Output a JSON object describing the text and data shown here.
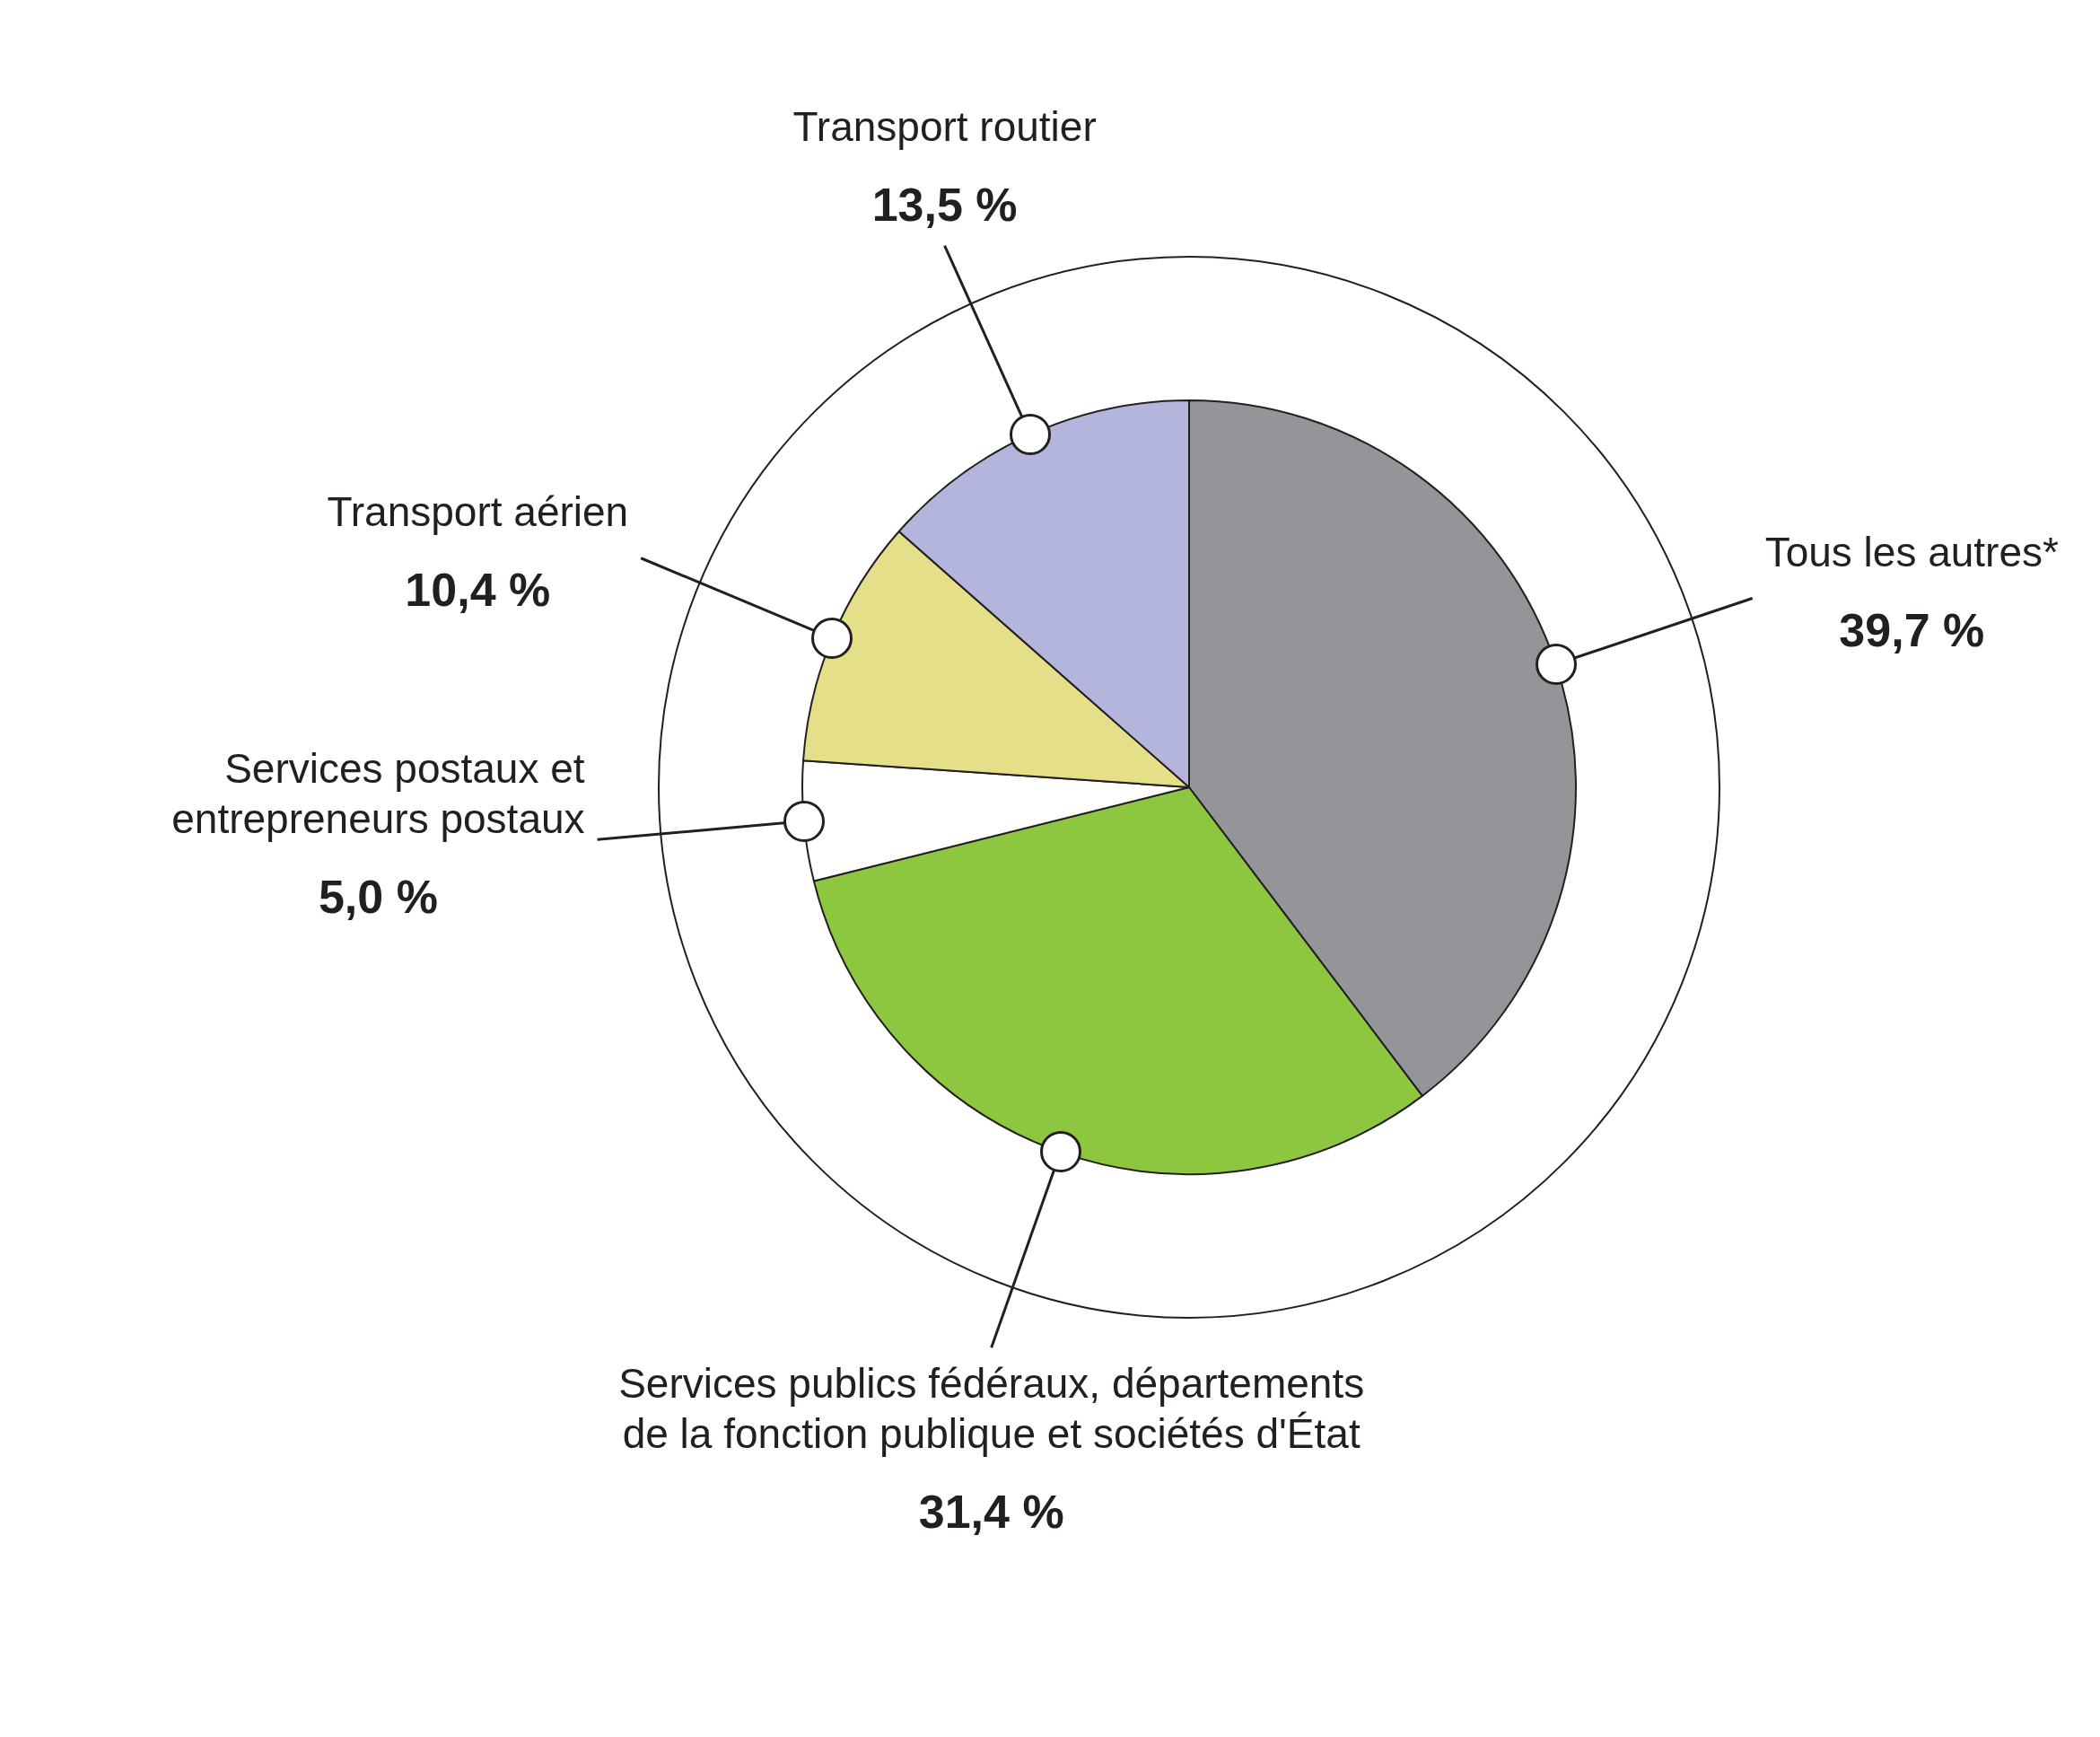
{
  "chart_data": {
    "type": "pie",
    "categories": [
      "Tous les autres*",
      "Services publics fédéraux, départements de la fonction publique et sociétés d'État",
      "Services postaux et entrepreneurs postaux",
      "Transport aérien",
      "Transport routier"
    ],
    "values": [
      39.7,
      31.4,
      5.0,
      10.4,
      13.5
    ],
    "colors": [
      "#939598",
      "#8dc63f",
      "#ffffff",
      "#e6df8a",
      "#b3b5dc"
    ],
    "value_labels": [
      "39,7 %",
      "31,4 %",
      "5,0 %",
      "10,4 %",
      "13,5 %"
    ]
  }
}
